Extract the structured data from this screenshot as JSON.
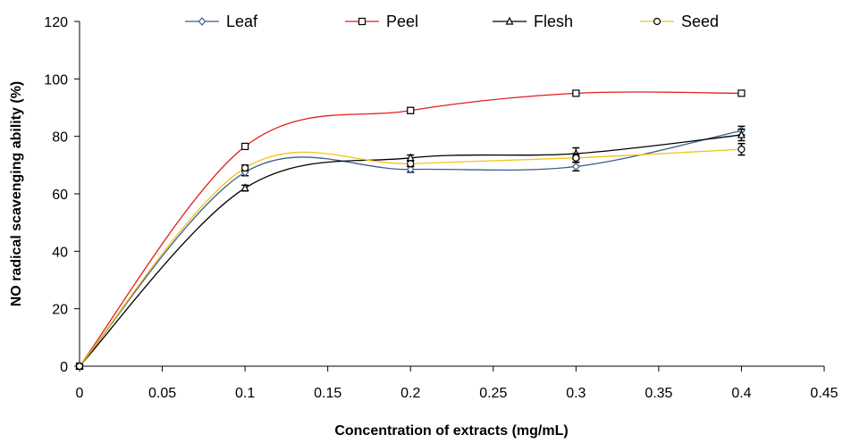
{
  "chart_data": {
    "type": "line",
    "xlabel": "Concentration of extracts (mg/mL)",
    "ylabel": "NO radical scavenging ability (%)",
    "xlim": [
      0,
      0.45
    ],
    "ylim": [
      0,
      120
    ],
    "x_ticks": [
      "0",
      "0.05",
      "0.1",
      "0.15",
      "0.2",
      "0.25",
      "0.3",
      "0.35",
      "0.4",
      "0.45"
    ],
    "y_ticks": [
      "0",
      "20",
      "40",
      "60",
      "80",
      "100",
      "120"
    ],
    "x": [
      0,
      0.1,
      0.2,
      0.3,
      0.4
    ],
    "grid": false,
    "legend_position": "top",
    "series": [
      {
        "name": "Leaf",
        "marker": "diamond",
        "color": "#3B5E8C",
        "values": [
          0,
          67.5,
          68.5,
          69.5,
          82.0
        ],
        "errors": [
          0,
          1.2,
          1.0,
          1.5,
          1.5
        ]
      },
      {
        "name": "Peel",
        "marker": "square",
        "color": "#E0201B",
        "values": [
          0,
          76.5,
          89.0,
          95.0,
          95.0
        ],
        "errors": [
          0,
          0.8,
          1.0,
          0.8,
          0.8
        ]
      },
      {
        "name": "Flesh",
        "marker": "triangle",
        "color": "#000000",
        "values": [
          0,
          62.0,
          72.5,
          74.0,
          80.5
        ],
        "errors": [
          0,
          1.0,
          1.0,
          2.0,
          2.0
        ]
      },
      {
        "name": "Seed",
        "marker": "circle",
        "color": "#F2C318",
        "values": [
          0,
          69.0,
          70.5,
          72.5,
          75.5
        ],
        "errors": [
          0,
          1.0,
          1.0,
          1.5,
          2.0
        ]
      }
    ]
  }
}
